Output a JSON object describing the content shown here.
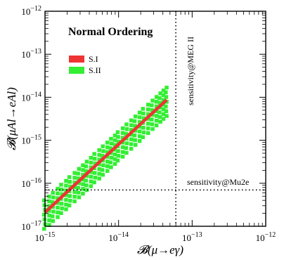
{
  "chart_data": {
    "type": "scatter",
    "title": "Normal Ordering",
    "xlabel": "𝓑(μ→eγ)",
    "ylabel": "𝓑(μAl→eAl)",
    "x_scale": "log",
    "y_scale": "log",
    "xlim": [
      1e-15,
      1e-12
    ],
    "ylim": [
      1e-17,
      1e-12
    ],
    "x_ticks": [
      {
        "value": 1e-15,
        "base": "10",
        "exp": "−15"
      },
      {
        "value": 1e-14,
        "base": "10",
        "exp": "−14"
      },
      {
        "value": 1e-13,
        "base": "10",
        "exp": "−13"
      },
      {
        "value": 1e-12,
        "base": "10",
        "exp": "−12"
      }
    ],
    "y_ticks": [
      {
        "value": 1e-17,
        "base": "10",
        "exp": "−17"
      },
      {
        "value": 1e-16,
        "base": "10",
        "exp": "−16"
      },
      {
        "value": 1e-15,
        "base": "10",
        "exp": "−15"
      },
      {
        "value": 1e-14,
        "base": "10",
        "exp": "−14"
      },
      {
        "value": 1e-13,
        "base": "10",
        "exp": "−13"
      },
      {
        "value": 1e-12,
        "base": "10",
        "exp": "−12"
      }
    ],
    "legend_position": "upper-left",
    "series": [
      {
        "name": "S.I",
        "color": "#ee3333",
        "style": "thick-line",
        "x": [
          1e-15,
          4.5e-14
        ],
        "y": [
          2.1e-17,
          8.7e-15
        ]
      },
      {
        "name": "S.II",
        "color": "#33ee33",
        "style": "band",
        "x_range": [
          1e-15,
          4.5e-14
        ],
        "center_log_x": [
          -15,
          -13.35
        ],
        "center_log_y": [
          -16.68,
          -14.06
        ],
        "half_width_decades": 0.38,
        "points_x": [
          1e-15,
          1.3e-15,
          1.7e-15,
          2.2e-15,
          2.9e-15,
          3.7e-15,
          4.8e-15,
          6.2e-15,
          8e-15,
          1e-14,
          1.3e-14,
          1.7e-14,
          2.2e-14,
          2.9e-14,
          3.7e-14,
          4.5e-14
        ]
      }
    ],
    "annotations": [
      {
        "text": "sensitivity@MEG II",
        "type": "vline",
        "x": 6e-14,
        "style": "dotted"
      },
      {
        "text": "sensitivity@Mu2e",
        "type": "hline",
        "y": 7e-17,
        "style": "dotted"
      }
    ]
  }
}
